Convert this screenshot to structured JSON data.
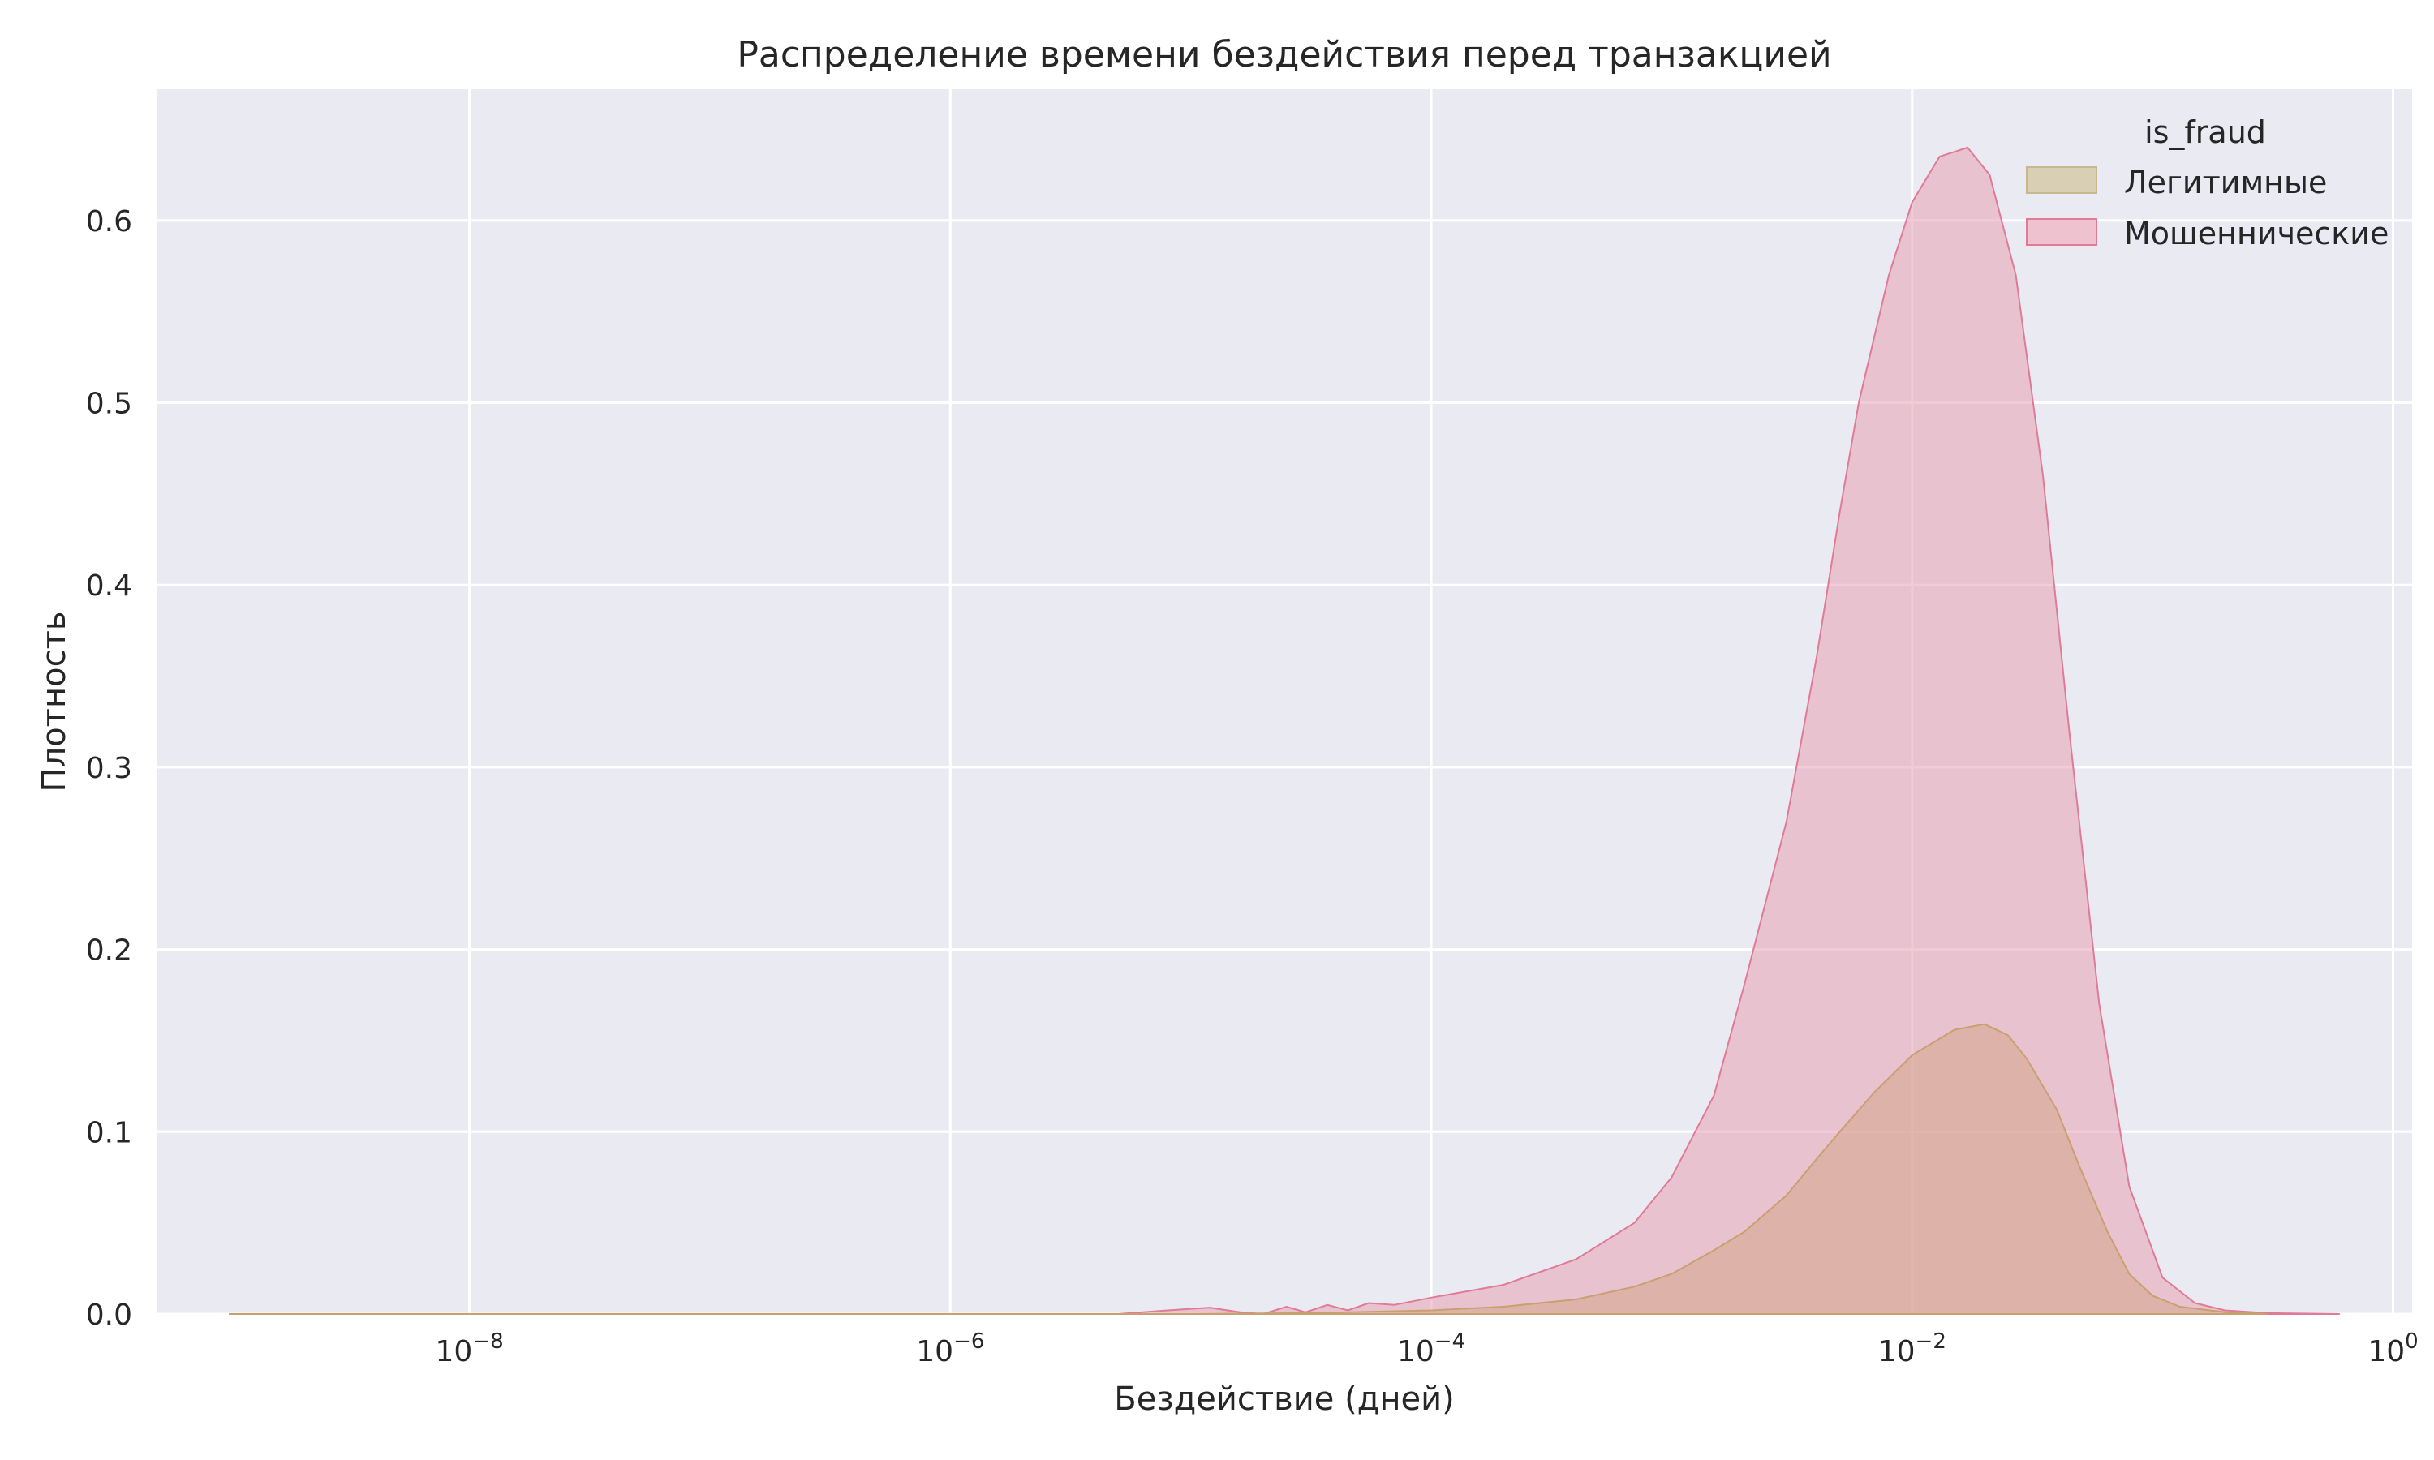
{
  "chart_data": {
    "type": "area",
    "title": "Распределение времени бездействия перед транзакцией",
    "xlabel": "Бездействие (дней)",
    "ylabel": "Плотность",
    "x_scale": "log",
    "xlim": [
      5e-10,
      1.2
    ],
    "ylim": [
      0,
      0.672
    ],
    "x_ticks": [
      {
        "value": 1e-08,
        "base": "10",
        "exp": "−8"
      },
      {
        "value": 1e-06,
        "base": "10",
        "exp": "−6"
      },
      {
        "value": 0.0001,
        "base": "10",
        "exp": "−4"
      },
      {
        "value": 0.01,
        "base": "10",
        "exp": "−2"
      },
      {
        "value": 1,
        "base": "10",
        "exp": "0"
      }
    ],
    "y_ticks": [
      "0.0",
      "0.1",
      "0.2",
      "0.3",
      "0.4",
      "0.5",
      "0.6"
    ],
    "grid": true,
    "legend": {
      "title": "is_fraud",
      "position": "top-right"
    },
    "series": [
      {
        "name": "Мошеннические",
        "color": "#e8a0b4",
        "edge_color": "#e07a95",
        "points": [
          [
            1e-09,
            0.0
          ],
          [
            1e-06,
            0.0
          ],
          [
            5e-06,
            0.0
          ],
          [
            8e-06,
            0.002
          ],
          [
            1.2e-05,
            0.0035
          ],
          [
            1.6e-05,
            0.001
          ],
          [
            2e-05,
            0.0
          ],
          [
            2.5e-05,
            0.004
          ],
          [
            3e-05,
            0.001
          ],
          [
            3.7e-05,
            0.005
          ],
          [
            4.5e-05,
            0.002
          ],
          [
            5.5e-05,
            0.006
          ],
          [
            7e-05,
            0.005
          ],
          [
            0.0001,
            0.009
          ],
          [
            0.0002,
            0.016
          ],
          [
            0.0004,
            0.03
          ],
          [
            0.0007,
            0.05
          ],
          [
            0.001,
            0.075
          ],
          [
            0.0015,
            0.12
          ],
          [
            0.002,
            0.18
          ],
          [
            0.003,
            0.27
          ],
          [
            0.004,
            0.36
          ],
          [
            0.005,
            0.44
          ],
          [
            0.006,
            0.5
          ],
          [
            0.008,
            0.57
          ],
          [
            0.01,
            0.61
          ],
          [
            0.013,
            0.635
          ],
          [
            0.017,
            0.64
          ],
          [
            0.021,
            0.625
          ],
          [
            0.027,
            0.57
          ],
          [
            0.035,
            0.46
          ],
          [
            0.045,
            0.32
          ],
          [
            0.06,
            0.17
          ],
          [
            0.08,
            0.07
          ],
          [
            0.11,
            0.02
          ],
          [
            0.15,
            0.006
          ],
          [
            0.2,
            0.002
          ],
          [
            0.3,
            0.0005
          ],
          [
            0.6,
            0.0
          ]
        ]
      },
      {
        "name": "Легитимные",
        "color": "#d7aa93",
        "edge_color": "#c8a070",
        "points": [
          [
            1e-09,
            0.0
          ],
          [
            1e-05,
            0.0
          ],
          [
            3e-05,
            0.0005
          ],
          [
            0.0001,
            0.002
          ],
          [
            0.0002,
            0.004
          ],
          [
            0.0004,
            0.008
          ],
          [
            0.0007,
            0.015
          ],
          [
            0.001,
            0.022
          ],
          [
            0.0015,
            0.035
          ],
          [
            0.002,
            0.045
          ],
          [
            0.003,
            0.065
          ],
          [
            0.004,
            0.085
          ],
          [
            0.005,
            0.1
          ],
          [
            0.007,
            0.122
          ],
          [
            0.01,
            0.142
          ],
          [
            0.015,
            0.156
          ],
          [
            0.02,
            0.159
          ],
          [
            0.025,
            0.153
          ],
          [
            0.03,
            0.14
          ],
          [
            0.04,
            0.112
          ],
          [
            0.05,
            0.08
          ],
          [
            0.065,
            0.045
          ],
          [
            0.08,
            0.022
          ],
          [
            0.1,
            0.01
          ],
          [
            0.13,
            0.004
          ],
          [
            0.2,
            0.001
          ],
          [
            0.3,
            0.0
          ]
        ]
      }
    ],
    "legend_entries": [
      {
        "label": "Легитимные",
        "color": "#d9cfb4",
        "edge_color": "#c8b890"
      },
      {
        "label": "Мошеннические",
        "color": "#eec3cf",
        "edge_color": "#e07a95"
      }
    ]
  }
}
